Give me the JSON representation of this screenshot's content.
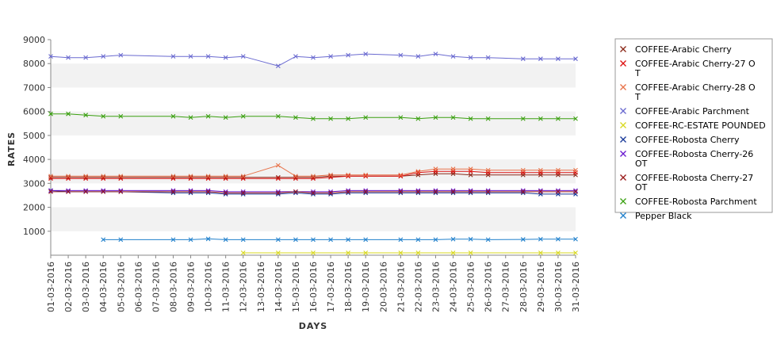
{
  "chart_data": {
    "type": "line",
    "xlabel": "DAYS",
    "ylabel": "RATES",
    "ylim": [
      0,
      9000
    ],
    "yticks": [
      1000,
      2000,
      3000,
      4000,
      5000,
      6000,
      7000,
      8000,
      9000
    ],
    "grid": "alternating horizontal bands",
    "legend_position": "right",
    "categories": [
      "01-03-2016",
      "02-03-2016",
      "03-03-2016",
      "04-03-2016",
      "05-03-2016",
      "06-03-2016",
      "07-03-2016",
      "08-03-2016",
      "09-03-2016",
      "10-03-2016",
      "11-03-2016",
      "12-03-2016",
      "13-03-2016",
      "14-03-2016",
      "15-03-2016",
      "16-03-2016",
      "17-03-2016",
      "18-03-2016",
      "19-03-2016",
      "20-03-2016",
      "21-03-2016",
      "22-03-2016",
      "23-03-2016",
      "24-03-2016",
      "25-03-2016",
      "26-03-2016",
      "27-03-2016",
      "28-03-2016",
      "29-03-2016",
      "30-03-2016",
      "31-03-2016"
    ],
    "series": [
      {
        "name": "COFFEE-Arabic Cherry",
        "color": "#8b2a1a",
        "values": [
          3250,
          3250,
          3250,
          3250,
          3250,
          null,
          null,
          3250,
          3250,
          3250,
          3250,
          3250,
          null,
          3250,
          3250,
          3250,
          3300,
          3300,
          3300,
          null,
          3300,
          3350,
          3400,
          3400,
          3350,
          3350,
          null,
          3350,
          3350,
          3350,
          3350
        ]
      },
      {
        "name": "COFFEE-Arabic Cherry-27 O T",
        "color": "#dd1111",
        "values": [
          3200,
          3200,
          3200,
          3200,
          3200,
          null,
          null,
          3200,
          3200,
          3200,
          3200,
          3200,
          null,
          3200,
          3200,
          3200,
          3250,
          3300,
          3300,
          null,
          3300,
          3450,
          3500,
          3500,
          3500,
          3450,
          null,
          3450,
          3450,
          3450,
          3450
        ]
      },
      {
        "name": "COFFEE-Arabic Cherry-28 O T",
        "color": "#e8734a",
        "values": [
          3300,
          3300,
          3300,
          3300,
          3300,
          null,
          null,
          3300,
          3300,
          3300,
          3300,
          3300,
          null,
          3750,
          3300,
          3300,
          3350,
          3350,
          3350,
          null,
          3350,
          3500,
          3600,
          3600,
          3600,
          3550,
          null,
          3550,
          3550,
          3550,
          3550
        ]
      },
      {
        "name": "COFFEE-Arabic Parchment",
        "color": "#6a6ad0",
        "values": [
          8300,
          8250,
          8250,
          8300,
          8350,
          null,
          null,
          8300,
          8300,
          8300,
          8250,
          8300,
          null,
          7900,
          8300,
          8250,
          8300,
          8350,
          8400,
          null,
          8350,
          8300,
          8400,
          8300,
          8250,
          8250,
          null,
          8200,
          8200,
          8200,
          8200
        ]
      },
      {
        "name": "COFFEE-RC-ESTATE POUNDED",
        "color": "#d8d820",
        "values": [
          null,
          null,
          null,
          null,
          null,
          null,
          null,
          null,
          null,
          null,
          null,
          100,
          null,
          100,
          null,
          100,
          null,
          100,
          100,
          null,
          100,
          100,
          null,
          100,
          100,
          null,
          null,
          null,
          100,
          100,
          100
        ]
      },
      {
        "name": "COFFEE-Robosta Cherry",
        "color": "#1a3a99",
        "values": [
          2700,
          2650,
          2650,
          2650,
          2650,
          null,
          null,
          2600,
          2600,
          2600,
          2550,
          2550,
          null,
          2550,
          2600,
          2550,
          2550,
          2600,
          2600,
          null,
          2600,
          2600,
          2600,
          2600,
          2600,
          2600,
          null,
          2600,
          2550,
          2550,
          2550
        ]
      },
      {
        "name": "COFFEE-Robosta Cherry-26 OT",
        "color": "#6a1ad0",
        "values": [
          2700,
          2700,
          2700,
          2700,
          2700,
          null,
          null,
          2700,
          2700,
          2700,
          2650,
          2650,
          null,
          2650,
          2650,
          2650,
          2650,
          2700,
          2700,
          null,
          2700,
          2700,
          2700,
          2700,
          2700,
          2700,
          null,
          2700,
          2700,
          2700,
          2700
        ]
      },
      {
        "name": "COFFEE-Robosta Cherry-27 OT",
        "color": "#991a1a",
        "values": [
          2650,
          2650,
          2650,
          2650,
          2650,
          null,
          null,
          2650,
          2650,
          2650,
          2600,
          2600,
          null,
          2600,
          2650,
          2600,
          2600,
          2650,
          2650,
          null,
          2650,
          2650,
          2650,
          2650,
          2650,
          2650,
          null,
          2650,
          2650,
          2650,
          2650
        ]
      },
      {
        "name": "COFFEE-Robosta Parchment",
        "color": "#3aa010",
        "values": [
          5900,
          5900,
          5850,
          5800,
          5800,
          null,
          null,
          5800,
          5750,
          5800,
          5750,
          5800,
          null,
          5800,
          5750,
          5700,
          5700,
          5700,
          5750,
          null,
          5750,
          5700,
          5750,
          5750,
          5700,
          5700,
          null,
          5700,
          5700,
          5700,
          5700
        ]
      },
      {
        "name": "Pepper Black",
        "color": "#2080cc",
        "values": [
          null,
          null,
          null,
          650,
          650,
          null,
          null,
          650,
          650,
          680,
          650,
          650,
          null,
          650,
          650,
          650,
          650,
          650,
          650,
          null,
          650,
          650,
          650,
          670,
          670,
          650,
          null,
          660,
          670,
          670,
          670
        ]
      }
    ]
  }
}
